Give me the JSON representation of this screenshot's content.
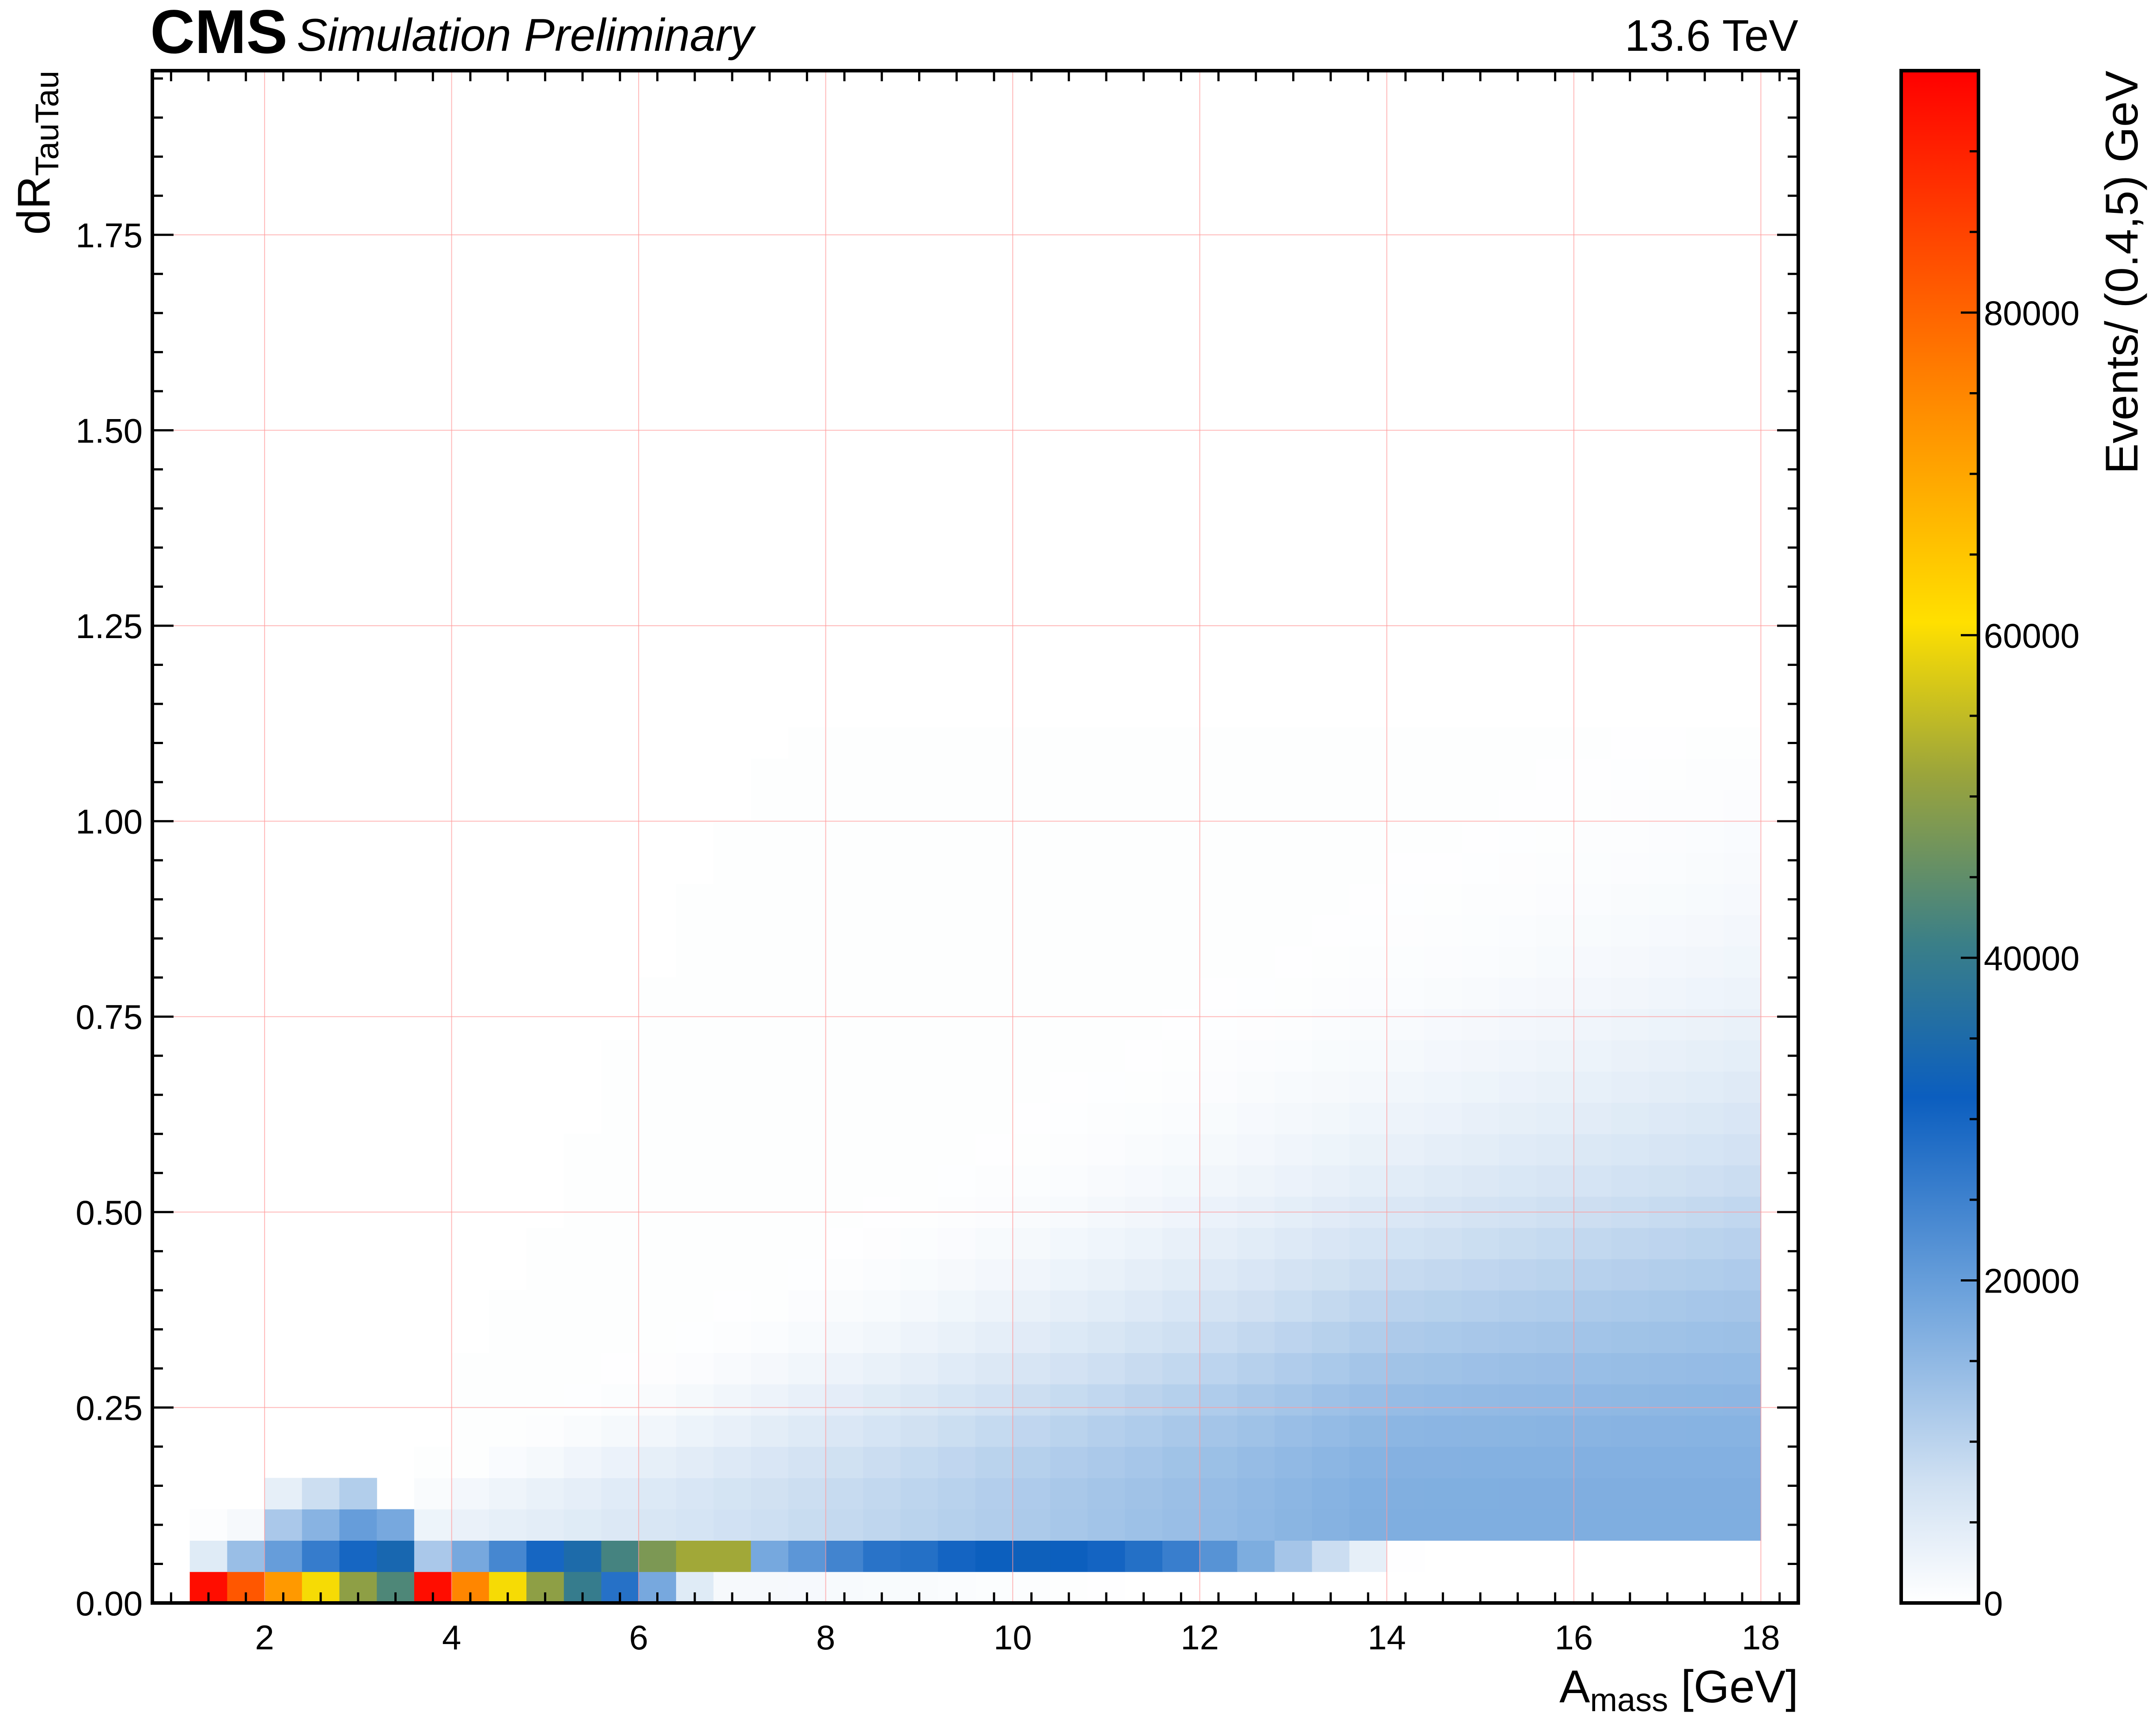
{
  "header": {
    "experiment": "CMS",
    "subtitle": "Simulation Preliminary",
    "energy": "13.6 TeV"
  },
  "chart_data": {
    "type": "heatmap",
    "xlabel_main": "A",
    "xlabel_sub": "mass",
    "xlabel_unit": " [GeV]",
    "ylabel_main": "dR",
    "ylabel_sub": "TauTau",
    "colorbar_label": "Events/ (0.4,5) GeV",
    "colormap": "cms-style: white -> light blue -> blue -> teal -> olive -> yellow -> orange -> red",
    "xlim": [
      0.8,
      18.4
    ],
    "ylim": [
      0,
      1.96
    ],
    "clim": [
      0,
      95000
    ],
    "grid": true,
    "grid_color": "#ff9a9a",
    "x_ticks": [
      "2",
      "4",
      "6",
      "8",
      "10",
      "12",
      "14",
      "16",
      "18"
    ],
    "y_ticks": [
      "0.00",
      "0.25",
      "0.50",
      "0.75",
      "1.00",
      "1.25",
      "1.50",
      "1.75"
    ],
    "colorbar_ticks": [
      "0",
      "20000",
      "40000",
      "60000",
      "80000"
    ],
    "x_bin_edges_start": 1.2,
    "x_bin_width": 0.4,
    "n_x_bins": 42,
    "y_bin_width": 0.04,
    "n_y_bins": 28,
    "low_mass_region": {
      "x_range": [
        1.2,
        3.6
      ],
      "y_bin_0": [
        93000,
        82000,
        72000,
        60000,
        50000,
        43000
      ],
      "y_bin_1": [
        5000,
        14000,
        20000,
        26000,
        30000,
        34000
      ],
      "y_bin_2": [
        500,
        1500,
        12000,
        16000,
        20000,
        18000
      ],
      "y_bin_3": [
        0,
        0,
        4000,
        8000,
        11000,
        0
      ]
    },
    "second_region_start": {
      "x_range": [
        3.6,
        7.2
      ],
      "y_bin_0": [
        93000,
        75000,
        60000,
        50000,
        40000,
        28000,
        18000,
        5000,
        1500
      ],
      "y_bin_1": [
        12000,
        18000,
        24000,
        30000,
        35000,
        42000,
        48000,
        52000,
        52000
      ]
    },
    "notes": "Main ridge rises in dR with A_mass; bins at dR 0.08-0.12 peak ~30000 near A_mass 9-11 GeV; for A_mass > 12 GeV the populated band spreads up to dR ~0.6-1.1 with values mostly < 16000"
  }
}
